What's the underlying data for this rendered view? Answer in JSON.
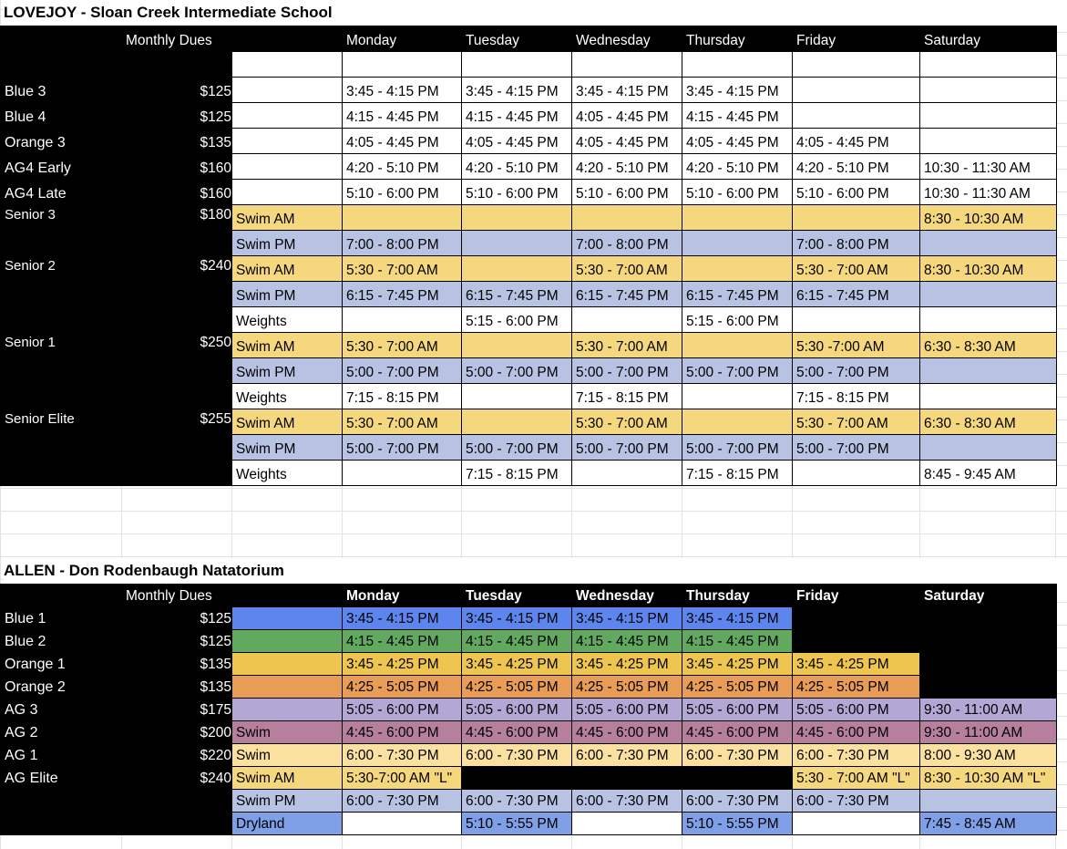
{
  "days": [
    "Monday",
    "Tuesday",
    "Wednesday",
    "Thursday",
    "Friday",
    "Saturday"
  ],
  "dues_header": "Monthly Dues",
  "lovejoy": {
    "title": "LOVEJOY - Sloan Creek Intermediate School",
    "rows": [
      {
        "group": "Blue 3",
        "dues": "$125",
        "activity": "",
        "times": [
          "3:45 - 4:15 PM",
          "3:45 - 4:15 PM",
          "3:45 - 4:15 PM",
          "3:45 - 4:15 PM",
          "",
          ""
        ]
      },
      {
        "group": "Blue 4",
        "dues": "$125",
        "activity": "",
        "times": [
          "4:15 - 4:45 PM",
          "4:15 - 4:45 PM",
          "4:05 - 4:45 PM",
          "4:15 - 4:45 PM",
          "",
          ""
        ]
      },
      {
        "group": "Orange 3",
        "dues": "$135",
        "activity": "",
        "times": [
          "4:05 - 4:45 PM",
          "4:05 - 4:45 PM",
          "4:05 - 4:45 PM",
          "4:05 - 4:45 PM",
          "4:05 - 4:45 PM",
          ""
        ]
      },
      {
        "group": "AG4 Early",
        "dues": "$160",
        "activity": "",
        "times": [
          "4:20 - 5:10 PM",
          "4:20 - 5:10 PM",
          "4:20 - 5:10 PM",
          "4:20 - 5:10 PM",
          "4:20 - 5:10 PM",
          "10:30 - 11:30 AM"
        ]
      },
      {
        "group": "AG4 Late",
        "dues": "$160",
        "activity": "",
        "times": [
          "5:10 - 6:00 PM",
          "5:10 - 6:00 PM",
          "5:10 - 6:00 PM",
          "5:10 - 6:00 PM",
          "5:10 - 6:00 PM",
          "10:30 - 11:30 AM"
        ]
      },
      {
        "group": "Senior 3",
        "dues": "$180",
        "activity": "Swim AM",
        "times": [
          "",
          "",
          "",
          "",
          "",
          "8:30 - 10:30 AM"
        ]
      },
      {
        "group": "",
        "dues": "",
        "activity": "Swim PM",
        "times": [
          "7:00 - 8:00 PM",
          "",
          "7:00 - 8:00 PM",
          "",
          "7:00 - 8:00 PM",
          ""
        ]
      },
      {
        "group": "Senior 2",
        "dues": "$240",
        "activity": "Swim AM",
        "times": [
          "5:30 - 7:00 AM",
          "",
          "5:30 - 7:00 AM",
          "",
          "5:30 - 7:00 AM",
          "8:30 - 10:30 AM"
        ]
      },
      {
        "group": "",
        "dues": "",
        "activity": "Swim PM",
        "times": [
          "6:15 - 7:45 PM",
          "6:15 - 7:45 PM",
          "6:15 - 7:45 PM",
          "6:15 - 7:45 PM",
          "6:15 - 7:45 PM",
          ""
        ]
      },
      {
        "group": "",
        "dues": "",
        "activity": "Weights",
        "times": [
          "",
          "5:15 - 6:00 PM",
          "",
          "5:15 - 6:00 PM",
          "",
          ""
        ]
      },
      {
        "group": "Senior 1",
        "dues": "$250",
        "activity": "Swim AM",
        "times": [
          "5:30 - 7:00 AM",
          "",
          "5:30 - 7:00 AM",
          "",
          "5:30 -7:00 AM",
          "6:30 - 8:30 AM"
        ]
      },
      {
        "group": "",
        "dues": "",
        "activity": "Swim PM",
        "times": [
          "5:00 - 7:00 PM",
          "5:00 - 7:00 PM",
          "5:00 - 7:00 PM",
          "5:00 - 7:00 PM",
          "5:00 - 7:00 PM",
          ""
        ]
      },
      {
        "group": "",
        "dues": "",
        "activity": "Weights",
        "times": [
          "7:15 - 8:15 PM",
          "",
          "7:15 - 8:15 PM",
          "",
          "7:15 - 8:15 PM",
          ""
        ]
      },
      {
        "group": "Senior Elite",
        "dues": "$255",
        "activity": "Swim AM",
        "times": [
          "5:30 - 7:00 AM",
          "",
          "5:30 - 7:00 AM",
          "",
          "5:30 - 7:00 AM",
          "6:30 - 8:30 AM"
        ]
      },
      {
        "group": "",
        "dues": "",
        "activity": "Swim PM",
        "times": [
          "5:00 - 7:00 PM",
          "5:00 - 7:00 PM",
          "5:00 - 7:00 PM",
          "5:00 - 7:00 PM",
          "5:00 - 7:00 PM",
          ""
        ]
      },
      {
        "group": "",
        "dues": "",
        "activity": "Weights",
        "times": [
          "",
          "7:15 - 8:15 PM",
          "",
          "7:15 - 8:15 PM",
          "",
          "8:45 - 9:45 AM"
        ]
      }
    ]
  },
  "allen": {
    "title": "ALLEN - Don Rodenbaugh Natatorium",
    "rows": [
      {
        "group": "Blue 1",
        "dues": "$125",
        "activity": "",
        "times": [
          "3:45 - 4:15 PM",
          "3:45 - 4:15 PM",
          "3:45 - 4:15 PM",
          "3:45 - 4:15 PM",
          "",
          ""
        ]
      },
      {
        "group": "Blue 2",
        "dues": "$125",
        "activity": "",
        "times": [
          "4:15 - 4:45 PM",
          "4:15 - 4:45 PM",
          "4:15 - 4:45 PM",
          "4:15 - 4:45 PM",
          "",
          ""
        ]
      },
      {
        "group": "Orange 1",
        "dues": "$135",
        "activity": "",
        "times": [
          "3:45 - 4:25 PM",
          "3:45 - 4:25 PM",
          "3:45 - 4:25 PM",
          "3:45 - 4:25 PM",
          "3:45 - 4:25 PM",
          ""
        ]
      },
      {
        "group": "Orange 2",
        "dues": "$135",
        "activity": "",
        "times": [
          "4:25 - 5:05 PM",
          "4:25 - 5:05 PM",
          "4:25 - 5:05 PM",
          "4:25 - 5:05 PM",
          "4:25 - 5:05 PM",
          ""
        ]
      },
      {
        "group": "AG 3",
        "dues": "$175",
        "activity": "",
        "times": [
          "5:05 - 6:00 PM",
          "5:05 - 6:00 PM",
          "5:05 - 6:00 PM",
          "5:05 - 6:00 PM",
          "5:05 - 6:00 PM",
          "9:30 - 11:00 AM"
        ]
      },
      {
        "group": "AG 2",
        "dues": "$200",
        "activity": "Swim",
        "times": [
          "4:45 - 6:00 PM",
          "4:45 - 6:00 PM",
          "4:45 - 6:00 PM",
          "4:45 - 6:00 PM",
          "4:45 - 6:00 PM",
          "9:30 - 11:00 AM"
        ]
      },
      {
        "group": "AG 1",
        "dues": "$220",
        "activity": "Swim",
        "times": [
          "6:00 - 7:30 PM",
          "6:00 - 7:30 PM",
          "6:00 - 7:30 PM",
          "6:00 - 7:30 PM",
          "6:00 - 7:30 PM",
          "8:00 - 9:30 AM"
        ]
      },
      {
        "group": "AG Elite",
        "dues": "$240",
        "activity": "Swim AM",
        "times": [
          "5:30-7:00 AM \"L\"",
          "",
          "",
          "",
          "5:30 - 7:00 AM \"L\"",
          "8:30 - 10:30 AM \"L\""
        ]
      },
      {
        "group": "",
        "dues": "",
        "activity": "Swim PM",
        "times": [
          "6:00 - 7:30 PM",
          "6:00 - 7:30 PM",
          "6:00 - 7:30 PM",
          "6:00 - 7:30 PM",
          "6:00 - 7:30 PM",
          ""
        ]
      },
      {
        "group": "",
        "dues": "",
        "activity": "Dryland",
        "times": [
          "",
          "5:10 - 5:55 PM",
          "",
          "5:10 - 5:55 PM",
          "",
          "7:45 - 8:45 AM"
        ]
      }
    ]
  },
  "colors": {
    "swim_am": "#f5d77d",
    "swim_pm": "#b8c3e3",
    "blue1": "#5c86ee",
    "blue2": "#62a960",
    "orange1": "#eec64f",
    "orange2": "#e89c55",
    "ag3": "#b2a7d5",
    "ag2": "#b67f9d",
    "ag1": "#fbe1a0",
    "dryland": "#7f9fe7"
  }
}
